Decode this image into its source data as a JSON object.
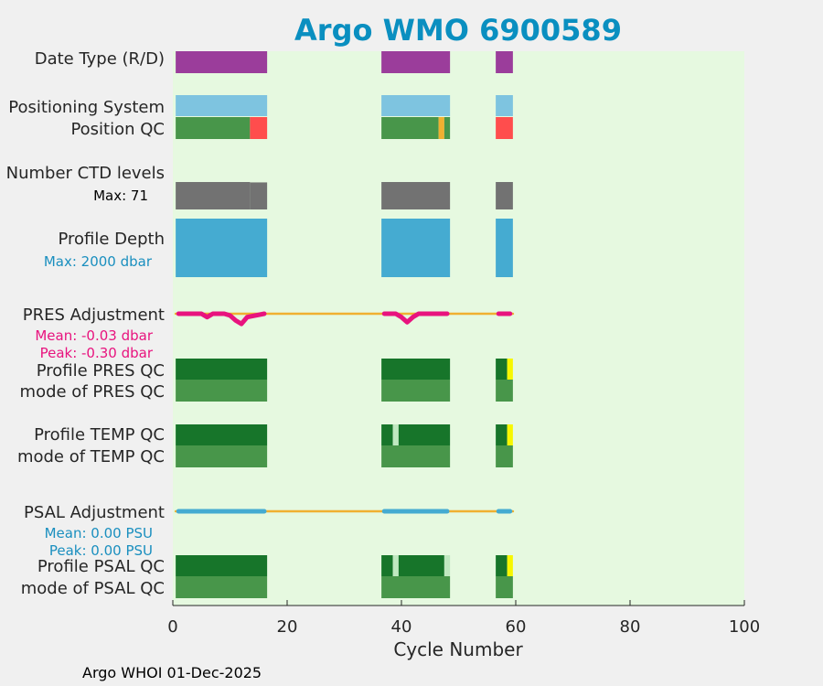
{
  "chart_data": {
    "type": "bar",
    "title": "Argo WMO 6900589",
    "xlabel": "Cycle Number",
    "xlim": [
      0,
      100
    ],
    "xticks": [
      0,
      20,
      40,
      60,
      80,
      100
    ],
    "footer": "Argo WHOI 01-Dec-2025",
    "row_labels": {
      "date_type": "Date Type (R/D)",
      "positioning_system": "Positioning System",
      "position_qc": "Position QC",
      "ctd_levels": "Number CTD levels",
      "ctd_max": "Max: 71",
      "profile_depth": "Profile Depth",
      "depth_max": "Max: 2000 dbar",
      "pres_adjustment": "PRES Adjustment",
      "pres_mean": "Mean: -0.03 dbar",
      "pres_peak": "Peak: -0.30 dbar",
      "profile_pres_qc": "Profile PRES QC",
      "mode_pres_qc": "mode of PRES QC",
      "profile_temp_qc": "Profile TEMP QC",
      "mode_temp_qc": "mode of TEMP QC",
      "psal_adjustment": "PSAL Adjustment",
      "psal_mean": "Mean: 0.00 PSU",
      "psal_peak": "Peak: 0.00 PSU",
      "profile_psal_qc": "Profile PSAL QC",
      "mode_psal_qc": "mode of PSAL QC"
    },
    "colors": {
      "plot_bg": "#e6f9e0",
      "figure_bg": "#f0f0f0",
      "title": "#0a8fc0",
      "realtime": "#9b3d9b",
      "positioning": "#7ec4e0",
      "qc_good": "#48964a",
      "qc_probably_good": "#f0b030",
      "qc_bad": "#ff4d4d",
      "ctd": "#727272",
      "depth": "#45abd1",
      "pres_adj": "#e8137e",
      "psal_adj": "#45abd1",
      "adj_line": "#f0b030",
      "profile_qc_a": "#17752a",
      "profile_qc_b": "#c0e8c0",
      "profile_qc_c": "#f7f700",
      "depth_text": "#1a8fbf",
      "pres_text": "#e8137e",
      "psal_text": "#1a8fbf"
    },
    "segments": [
      {
        "start": 0.5,
        "end": 16.5
      },
      {
        "start": 36.5,
        "end": 48.5
      },
      {
        "start": 56.5,
        "end": 59.5
      }
    ],
    "ctd_levels": [
      {
        "cycles": [
          1,
          13
        ],
        "levels": 71
      },
      {
        "cycles": [
          14,
          16
        ],
        "levels": 70
      }
    ],
    "position_qc": [
      {
        "range": [
          0.5,
          13.5
        ],
        "flag": "good"
      },
      {
        "range": [
          13.5,
          16.5
        ],
        "flag": "bad"
      },
      {
        "range": [
          36.5,
          46.5
        ],
        "flag": "good"
      },
      {
        "range": [
          46.5,
          47.5
        ],
        "flag": "probably_good"
      },
      {
        "range": [
          47.5,
          48.5
        ],
        "flag": "good"
      },
      {
        "range": [
          56.5,
          59.5
        ],
        "flag": "bad"
      }
    ],
    "pres_adjustment": {
      "cycles": [
        1,
        5,
        6,
        7,
        9,
        10,
        11,
        12,
        13,
        16,
        37,
        39,
        40,
        41,
        42,
        43,
        44,
        45,
        48,
        57,
        59
      ],
      "values": [
        0,
        0,
        -0.1,
        0,
        0,
        -0.05,
        -0.2,
        -0.3,
        -0.1,
        0,
        0,
        0,
        -0.1,
        -0.25,
        -0.1,
        0,
        0,
        0,
        0,
        0,
        0
      ]
    },
    "psal_adjustment": {
      "cycles": [
        1,
        16,
        37,
        48,
        57,
        59
      ],
      "values": [
        0,
        0,
        0,
        0,
        0,
        0
      ]
    },
    "profile_pres_qc": [
      {
        "range": [
          0.5,
          16.5
        ],
        "flag": "A"
      },
      {
        "range": [
          36.5,
          48.5
        ],
        "flag": "A"
      },
      {
        "range": [
          56.5,
          58.5
        ],
        "flag": "A"
      },
      {
        "range": [
          58.5,
          59.5
        ],
        "flag": "C"
      }
    ],
    "profile_temp_qc": [
      {
        "range": [
          0.5,
          16.5
        ],
        "flag": "A"
      },
      {
        "range": [
          36.5,
          38.5
        ],
        "flag": "A"
      },
      {
        "range": [
          38.5,
          39.5
        ],
        "flag": "B"
      },
      {
        "range": [
          39.5,
          48.5
        ],
        "flag": "A"
      },
      {
        "range": [
          56.5,
          58.5
        ],
        "flag": "A"
      },
      {
        "range": [
          58.5,
          59.5
        ],
        "flag": "C"
      }
    ],
    "profile_psal_qc": [
      {
        "range": [
          0.5,
          16.5
        ],
        "flag": "A"
      },
      {
        "range": [
          36.5,
          38.5
        ],
        "flag": "A"
      },
      {
        "range": [
          38.5,
          39.5
        ],
        "flag": "B"
      },
      {
        "range": [
          39.5,
          47.5
        ],
        "flag": "A"
      },
      {
        "range": [
          47.5,
          48.5
        ],
        "flag": "B"
      },
      {
        "range": [
          56.5,
          58.5
        ],
        "flag": "A"
      },
      {
        "range": [
          58.5,
          59.5
        ],
        "flag": "C"
      }
    ]
  }
}
